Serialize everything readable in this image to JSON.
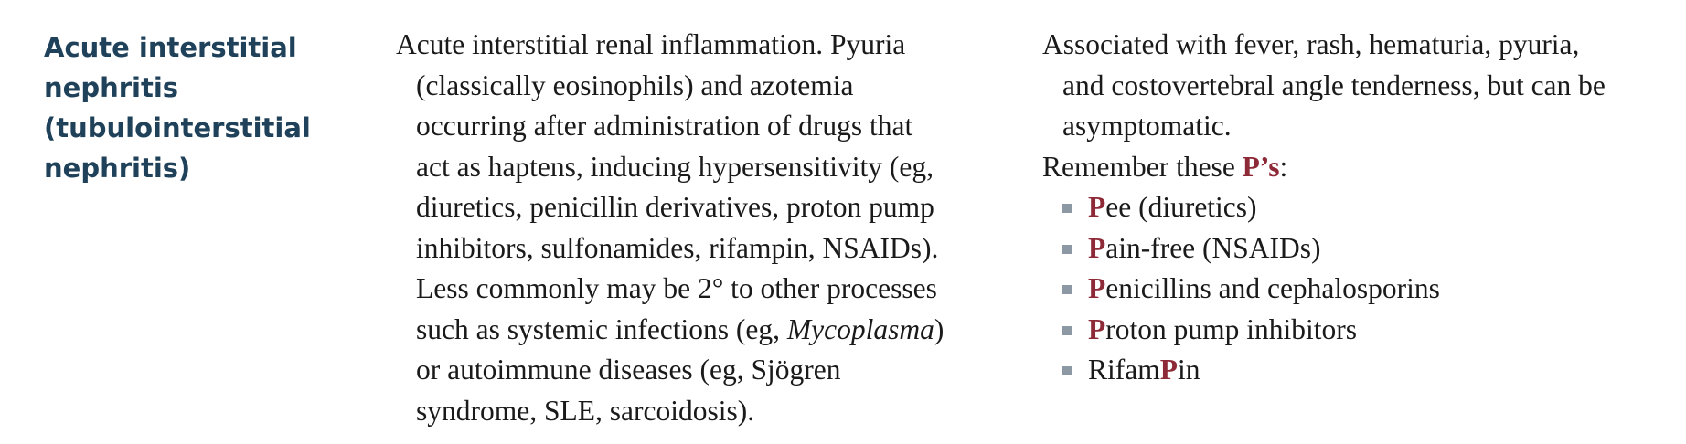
{
  "heading": {
    "lines": [
      "Acute interstitial",
      "nephritis",
      "(tubulointerstitial",
      "nephritis)"
    ]
  },
  "description": {
    "lines": [
      "Acute interstitial renal inflammation. Pyuria",
      "(classically eosinophils) and azotemia",
      "occurring after administration of drugs that",
      "act as haptens, inducing hypersensitivity (eg,",
      "diuretics, penicillin derivatives, proton pump",
      "inhibitors, sulfonamides, rifampin, NSAIDs).",
      "Less commonly may be 2° to other processes"
    ],
    "line8_before": "such as systemic infections (eg, ",
    "line8_italic": "Mycoplasma",
    "line8_after": ")",
    "line9": "or autoimmune diseases (eg, Sjögren",
    "line10": "syndrome, SLE, sarcoidosis)."
  },
  "notes": {
    "lines": [
      "Associated with fever, rash, hematuria, pyuria,",
      "and costovertebral angle tenderness, but can be",
      "asymptomatic."
    ],
    "remember_prefix": "Remember these ",
    "remember_highlight": "P’s",
    "remember_suffix": ":",
    "mnemonics": [
      {
        "before": "",
        "highlight": "P",
        "after": "ee (diuretics)"
      },
      {
        "before": "",
        "highlight": "P",
        "after": "ain-free (NSAIDs)"
      },
      {
        "before": "",
        "highlight": "P",
        "after": "enicillins and cephalosporins"
      },
      {
        "before": "",
        "highlight": "P",
        "after": "roton pump inhibitors"
      },
      {
        "before": "Rifam",
        "highlight": "P",
        "after": "in"
      }
    ]
  },
  "colors": {
    "heading": "#1f4159",
    "highlight": "#8e2a38",
    "bullet": "#8c99a4",
    "text": "#1a1a1a"
  }
}
